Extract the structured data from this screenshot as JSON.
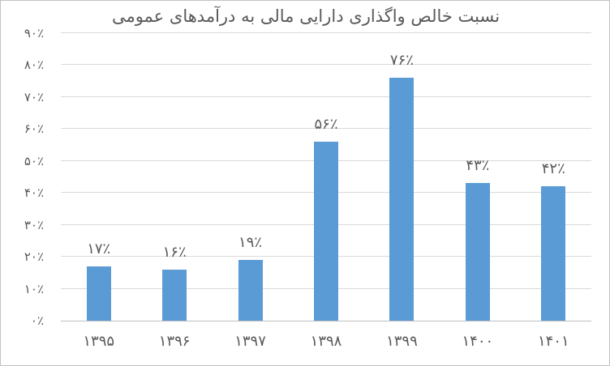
{
  "chart_data": {
    "type": "bar",
    "title": "نسبت خالص واگذاری دارایی مالی به درآمدهای عمومی",
    "categories": [
      "۱۳۹۵",
      "۱۳۹۶",
      "۱۳۹۷",
      "۱۳۹۸",
      "۱۳۹۹",
      "۱۴۰۰",
      "۱۴۰۱"
    ],
    "values": [
      17,
      16,
      19,
      56,
      76,
      43,
      42
    ],
    "value_labels": [
      "۱۷٪",
      "۱۶٪",
      "۱۹٪",
      "۵۶٪",
      "۷۶٪",
      "۴۳٪",
      "۴۲٪"
    ],
    "y_ticks": [
      0,
      10,
      20,
      30,
      40,
      50,
      60,
      70,
      80,
      90
    ],
    "y_tick_labels": [
      "۰٪",
      "۱۰٪",
      "۲۰٪",
      "۳۰٪",
      "۴۰٪",
      "۵۰٪",
      "۶۰٪",
      "۷۰٪",
      "۸۰٪",
      "۹۰٪"
    ],
    "ylim": [
      0,
      90
    ],
    "xlabel": "",
    "ylabel": "",
    "grid": true,
    "legend": false,
    "bar_color": "#5b9bd5",
    "gridline_color": "#d9d9d9",
    "axis_line_color": "#bfbfbf",
    "text_color": "#595959"
  }
}
